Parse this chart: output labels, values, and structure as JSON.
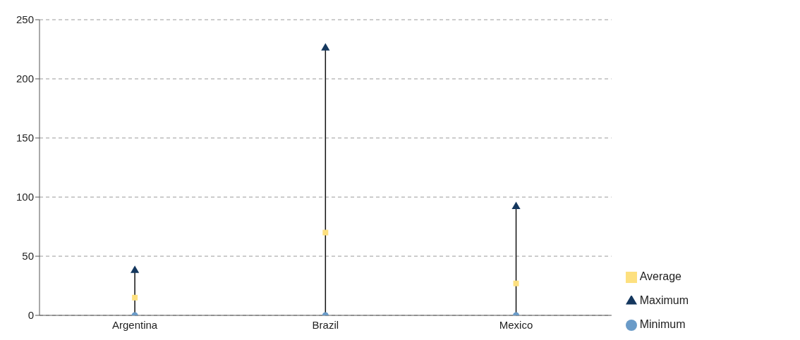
{
  "chart_data": {
    "type": "scatter",
    "categories": [
      "Argentina",
      "Brazil",
      "Mexico"
    ],
    "series": [
      {
        "name": "Maximum",
        "color": "#14375e",
        "marker": "triangle",
        "values": [
          38,
          226,
          92
        ]
      },
      {
        "name": "Average",
        "color": "#fde07f",
        "marker": "square",
        "values": [
          15,
          70,
          27
        ]
      },
      {
        "name": "Minimum",
        "color": "#6a9bc8",
        "marker": "circle",
        "values": [
          0,
          0,
          0
        ]
      }
    ],
    "ylim": [
      0,
      250
    ],
    "yticks": [
      0,
      50,
      100,
      150,
      200,
      250
    ],
    "grid": "y",
    "legend": "bottom right"
  }
}
